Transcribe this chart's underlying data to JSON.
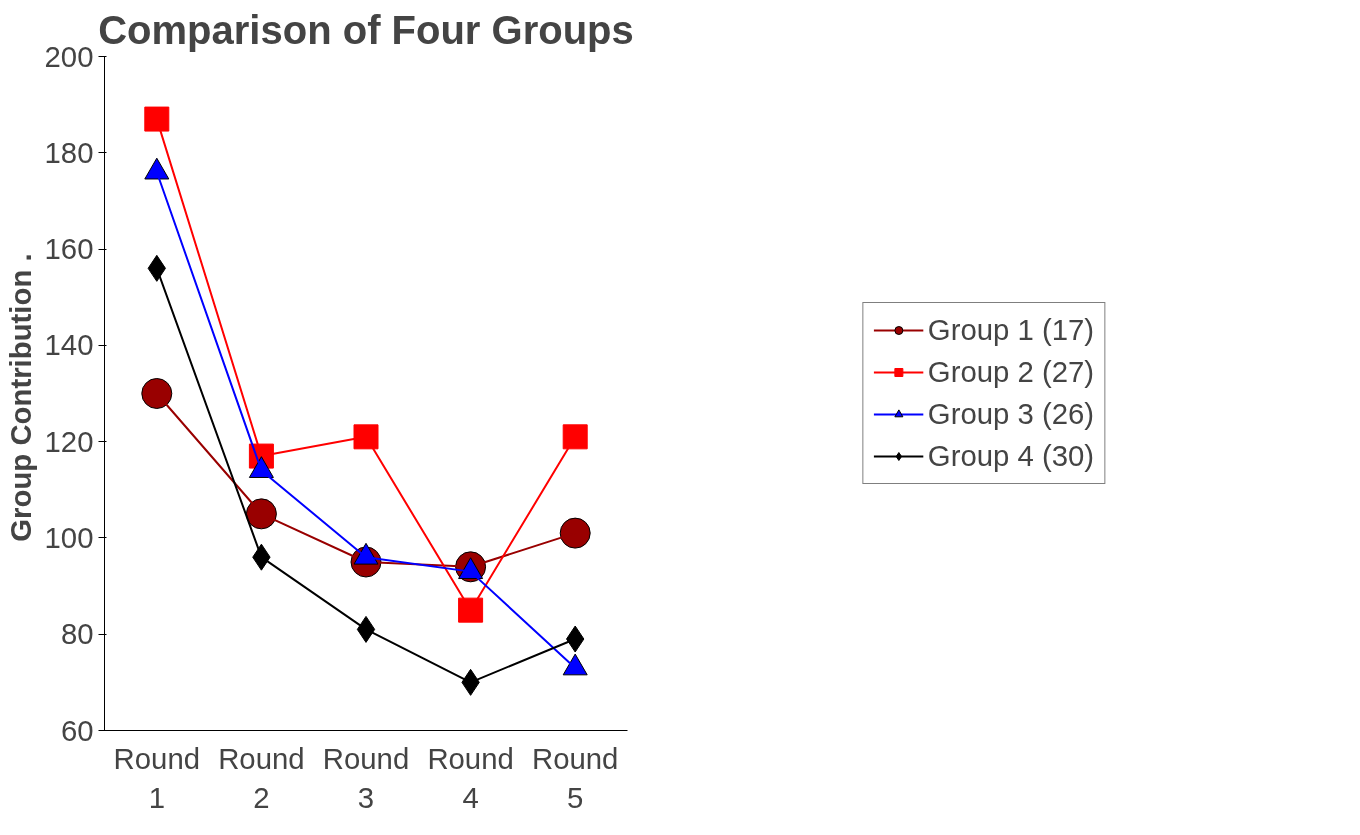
{
  "chart_data": {
    "type": "line",
    "title": "Comparison of Four Groups",
    "ylabel": "Group Contribution  .",
    "categories": [
      "Round 1",
      "Round 2",
      "Round 3",
      "Round 4",
      "Round 5"
    ],
    "ylim": [
      60,
      200
    ],
    "yticks": [
      60,
      80,
      100,
      120,
      140,
      160,
      180,
      200
    ],
    "grid": false,
    "legend": "right",
    "line_style": "solid",
    "series": [
      {
        "name": "Group 1 (17)",
        "color": "#990000",
        "marker": "circle",
        "values": [
          130,
          105,
          95,
          94,
          101
        ]
      },
      {
        "name": "Group 2 (27)",
        "color": "#ff0000",
        "marker": "square",
        "values": [
          187,
          117,
          121,
          85,
          121
        ]
      },
      {
        "name": "Group 3 (26)",
        "color": "#0000ff",
        "marker": "triangle",
        "values": [
          176,
          114,
          96,
          93,
          73
        ]
      },
      {
        "name": "Group 4 (30)",
        "color": "#000000",
        "marker": "diamond",
        "values": [
          156,
          96,
          81,
          70,
          79
        ]
      }
    ]
  }
}
